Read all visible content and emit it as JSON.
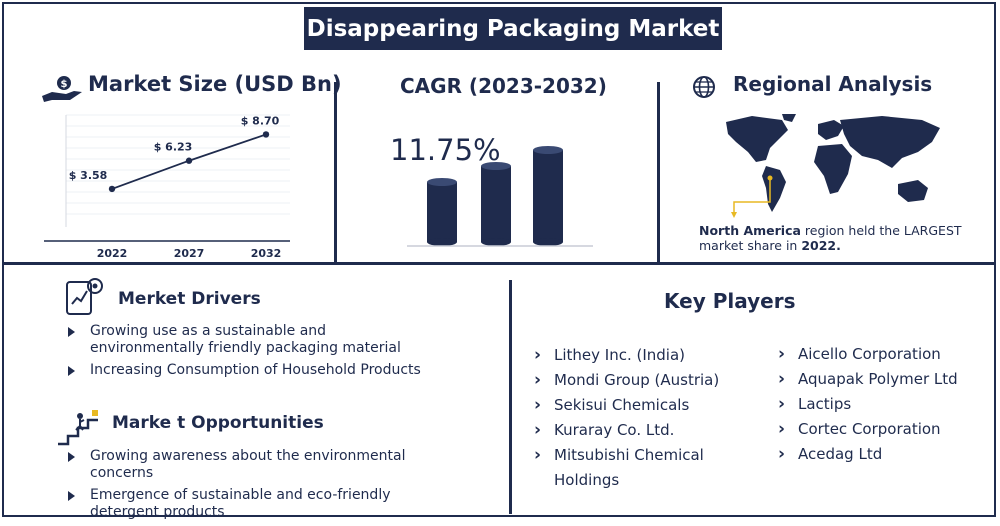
{
  "title": "Disappearing Packaging Market",
  "market_size": {
    "heading": "Market Size (USD Bn)",
    "icon": "money-hand-icon"
  },
  "cagr": {
    "heading": "CAGR (2023-2032)",
    "value": "11.75%"
  },
  "regional": {
    "heading": "Regional Analysis",
    "icon": "globe-icon",
    "note_bold_1": "North America",
    "note_mid": " region held the LARGEST market share in ",
    "note_bold_2": "2022."
  },
  "drivers": {
    "heading": "Merket Drivers",
    "icon": "analytics-tablet-icon",
    "items": [
      "Growing use as a sustainable and environmentally friendly packaging material",
      "Increasing Consumption of Household Products"
    ]
  },
  "opportunities": {
    "heading": "Marke t Opportunities",
    "icon": "climbing-stairs-icon",
    "items": [
      "Growing awareness about the environmental concerns",
      "Emergence of sustainable and eco-friendly detergent products"
    ]
  },
  "key_players": {
    "heading": "Key Players",
    "left": [
      "Lithey Inc. (India)",
      "Mondi Group (Austria)",
      "Sekisui Chemicals",
      "Kuraray Co. Ltd.",
      "Mitsubishi Chemical Holdings"
    ],
    "right": [
      "Aicello Corporation",
      "Aquapak Polymer Ltd",
      "Lactips",
      "Cortec Corporation",
      "Acedag Ltd"
    ]
  },
  "colors": {
    "navy": "#1f2b4d",
    "accent": "#e8b923"
  },
  "chart_data": {
    "type": "line",
    "categories": [
      "2022",
      "2027",
      "2032"
    ],
    "values": [
      3.58,
      6.23,
      8.7
    ],
    "labels": [
      "$ 3.58",
      "$ 6.23",
      "$ 8.70"
    ],
    "title": "Market Size (USD Bn)"
  }
}
